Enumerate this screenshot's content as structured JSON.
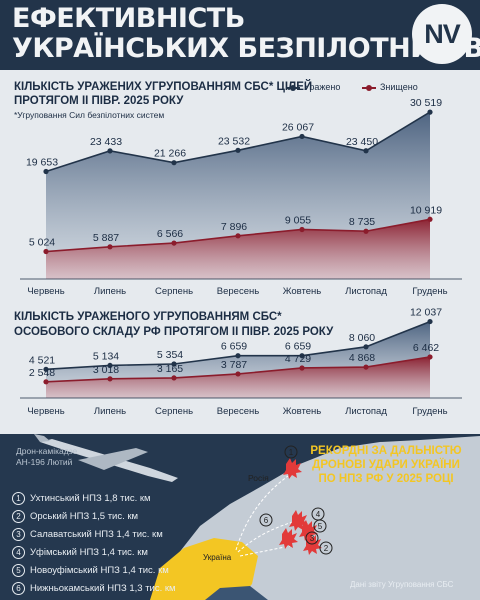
{
  "header": {
    "title_line1": "ЕФЕКТИВНІСТЬ",
    "title_line2": "УКРАЇНСЬКИХ БЕЗПІЛОТНИКІВ",
    "logo": "NV"
  },
  "legend": {
    "hit": "Уражено",
    "destroyed": "Знищено"
  },
  "chart1": {
    "title_line1": "КІЛЬКІСТЬ УРАЖЕНИХ УГРУПОВАННЯМ СБС* ЦІЛЕЙ",
    "title_line2": "ПРОТЯГОМ ІІ ПІВР. 2025 РОКУ",
    "note": "*Угруповання Сил безпілотних систем"
  },
  "chart2": {
    "title_line1": "КІЛЬКІСТЬ УРАЖЕНОГО УГРУПОВАННЯМ СБС*",
    "title_line2": "ОСОБОВОГО СКЛАДУ РФ ПРОТЯГОМ ІІ ПІВР. 2025 РОКУ"
  },
  "chart_data": [
    {
      "type": "area",
      "categories": [
        "Червень",
        "Липень",
        "Серпень",
        "Вересень",
        "Жовтень",
        "Листопад",
        "Грудень"
      ],
      "series": [
        {
          "name": "Уражено",
          "values": [
            19653,
            23433,
            21266,
            23532,
            26067,
            23450,
            30519
          ],
          "labels": [
            "19 653",
            "23 433",
            "21 266",
            "23 532",
            "26 067",
            "23 450",
            "30 519"
          ]
        },
        {
          "name": "Знищено",
          "values": [
            5024,
            5887,
            6566,
            7896,
            9055,
            8735,
            10919
          ],
          "labels": [
            "5 024",
            "5 887",
            "6 566",
            "7 896",
            "9 055",
            "8 735",
            "10 919"
          ]
        }
      ]
    },
    {
      "type": "area",
      "categories": [
        "Червень",
        "Липень",
        "Серпень",
        "Вересень",
        "Жовтень",
        "Листопад",
        "Грудень"
      ],
      "series": [
        {
          "name": "Уражено",
          "values": [
            4521,
            5134,
            5354,
            6659,
            6659,
            8060,
            12037
          ],
          "labels": [
            "4 521",
            "5 134",
            "5 354",
            "6 659",
            "6 659",
            "8 060",
            "12 037"
          ]
        },
        {
          "name": "Знищено",
          "values": [
            2548,
            3018,
            3165,
            3787,
            4729,
            4868,
            6462
          ],
          "labels": [
            "2 548",
            "3 018",
            "3 165",
            "3 787",
            "4 729",
            "4 868",
            "6 462"
          ]
        }
      ]
    }
  ],
  "colors": {
    "hit": "#22344a",
    "destroyed": "#8b1c2c",
    "accent": "#f3c623",
    "fire": "#e23a3a"
  },
  "drone": {
    "label_line1": "Дрон-камікадзе",
    "label_line2": "АН-196 Лютий"
  },
  "record": {
    "line1": "РЕКОРДНІ ЗА ДАЛЬНІСТЮ",
    "line2": "ДРОНОВІ УДАРИ УКРАЇНИ",
    "line3": "ПО НПЗ РФ У 2025 РОЦІ"
  },
  "refineries": [
    {
      "num": "1",
      "text": "Ухтинський НПЗ 1,8 тис. км"
    },
    {
      "num": "2",
      "text": "Орський НПЗ 1,5 тис. км"
    },
    {
      "num": "3",
      "text": "Салаватський НПЗ 1,4 тис. км"
    },
    {
      "num": "4",
      "text": "Уфімський НПЗ 1,4 тис. км"
    },
    {
      "num": "5",
      "text": "Новоуфімський НПЗ 1,4 тис. км"
    },
    {
      "num": "6",
      "text": "Нижньокамський НПЗ 1,3 тис. км"
    }
  ],
  "map": {
    "russia": "Росія",
    "ukraine": "Україна",
    "source": "Дані звіту Угруповання СБС"
  }
}
